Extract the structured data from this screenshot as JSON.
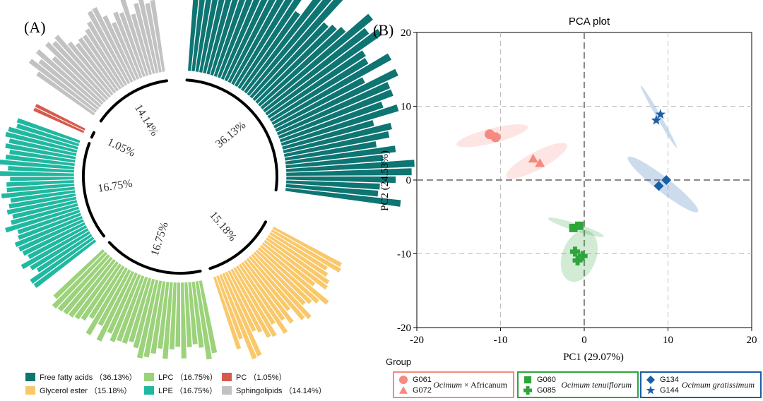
{
  "panel_a": {
    "label": "(A)",
    "chart_data": {
      "type": "bar",
      "title": "",
      "categories": [
        "Free fatty acids",
        "Glycerol ester",
        "LPC",
        "LPE",
        "PC",
        "Sphingolipids"
      ],
      "values": [
        36.13,
        15.18,
        16.75,
        16.75,
        1.05,
        14.14
      ],
      "value_labels": [
        "36.13%",
        "15.18%",
        "16.75%",
        "16.75%",
        "1.05%",
        "14.14%"
      ],
      "colors": [
        "#0e7573",
        "#f9c86a",
        "#9bd27a",
        "#20b8a0",
        "#d65a4c",
        "#c2c2c2"
      ],
      "legend": [
        {
          "label": "Free fatty acids （36.13%）",
          "color": "#0e7573"
        },
        {
          "label": "LPC （16.75%）",
          "color": "#9bd27a"
        },
        {
          "label": "PC （1.05%）",
          "color": "#d65a4c"
        },
        {
          "label": "Glycerol ester （15.18%）",
          "color": "#f9c86a"
        },
        {
          "label": "LPE （16.75%）",
          "color": "#20b8a0"
        },
        {
          "label": "Sphingolipids （14.14%）",
          "color": "#c2c2c2"
        }
      ]
    }
  },
  "panel_b": {
    "label": "(B)",
    "chart_data": {
      "type": "scatter",
      "title": "PCA plot",
      "xlabel": "PC1  (29.07%)",
      "ylabel": "PC2  (24.53%)",
      "xlim": [
        -20,
        20
      ],
      "ylim": [
        -20,
        20
      ],
      "xticks": [
        "-20",
        "-10",
        "0",
        "10",
        "20"
      ],
      "yticks": [
        "-20",
        "-10",
        "0",
        "10",
        "20"
      ],
      "grid": true,
      "series": [
        {
          "name": "G061",
          "marker": "circle",
          "color": "#f48a80",
          "points": [
            [
              -11.3,
              6.2
            ],
            [
              -10.6,
              5.8
            ]
          ]
        },
        {
          "name": "G072",
          "marker": "triangle",
          "color": "#f48a80",
          "points": [
            [
              -6.1,
              2.9
            ],
            [
              -5.3,
              2.3
            ]
          ]
        },
        {
          "name": "G060",
          "marker": "square",
          "color": "#2ea53b",
          "points": [
            [
              -1.3,
              -6.5
            ],
            [
              -0.6,
              -6.2
            ]
          ]
        },
        {
          "name": "G085",
          "marker": "plus",
          "color": "#2ea53b",
          "points": [
            [
              -1.1,
              -9.7
            ],
            [
              -0.8,
              -10.9
            ],
            [
              -0.2,
              -10.3
            ]
          ]
        },
        {
          "name": "G134",
          "marker": "diamond",
          "color": "#1b5ea7",
          "points": [
            [
              8.9,
              -0.8
            ],
            [
              9.8,
              0
            ]
          ]
        },
        {
          "name": "G144",
          "marker": "star",
          "color": "#1b5ea7",
          "points": [
            [
              8.6,
              8.1
            ],
            [
              9.1,
              8.9
            ]
          ]
        }
      ],
      "ellipses": [
        {
          "cx": -11,
          "cy": 6.0,
          "rx": 4.4,
          "ry": 1.0,
          "angle_deg": -14,
          "color": "#f48a80"
        },
        {
          "cx": -5.7,
          "cy": 2.6,
          "rx": 4.1,
          "ry": 1.2,
          "angle_deg": -28,
          "color": "#f48a80"
        },
        {
          "cx": -1.0,
          "cy": -6.4,
          "rx": 3.5,
          "ry": 0.5,
          "angle_deg": 18,
          "color": "#2ea53b"
        },
        {
          "cx": -0.6,
          "cy": -10.3,
          "rx": 3.2,
          "ry": 2.3,
          "angle_deg": -70,
          "color": "#2ea53b"
        },
        {
          "cx": 9.4,
          "cy": -0.6,
          "rx": 5.3,
          "ry": 1.0,
          "angle_deg": 38,
          "color": "#1b5ea7"
        },
        {
          "cx": 8.9,
          "cy": 8.6,
          "rx": 4.3,
          "ry": 0.3,
          "angle_deg": 60,
          "color": "#1b5ea7"
        }
      ]
    },
    "legend": {
      "title": "Group",
      "groups": [
        {
          "color": "#f48a80",
          "species_a": "Ocimum",
          "species_b": " × Africanum",
          "entries": [
            {
              "label": "G061",
              "marker": "circle"
            },
            {
              "label": "G072",
              "marker": "triangle"
            }
          ]
        },
        {
          "color": "#2ea53b",
          "species_a": "Ocimum tenuiflorum",
          "species_b": "",
          "entries": [
            {
              "label": "G060",
              "marker": "square"
            },
            {
              "label": "G085",
              "marker": "plus"
            }
          ]
        },
        {
          "color": "#1b5ea7",
          "species_a": "Ocimum gratissimum",
          "species_b": "",
          "entries": [
            {
              "label": "G134",
              "marker": "diamond"
            },
            {
              "label": "G144",
              "marker": "star"
            }
          ]
        }
      ]
    }
  }
}
